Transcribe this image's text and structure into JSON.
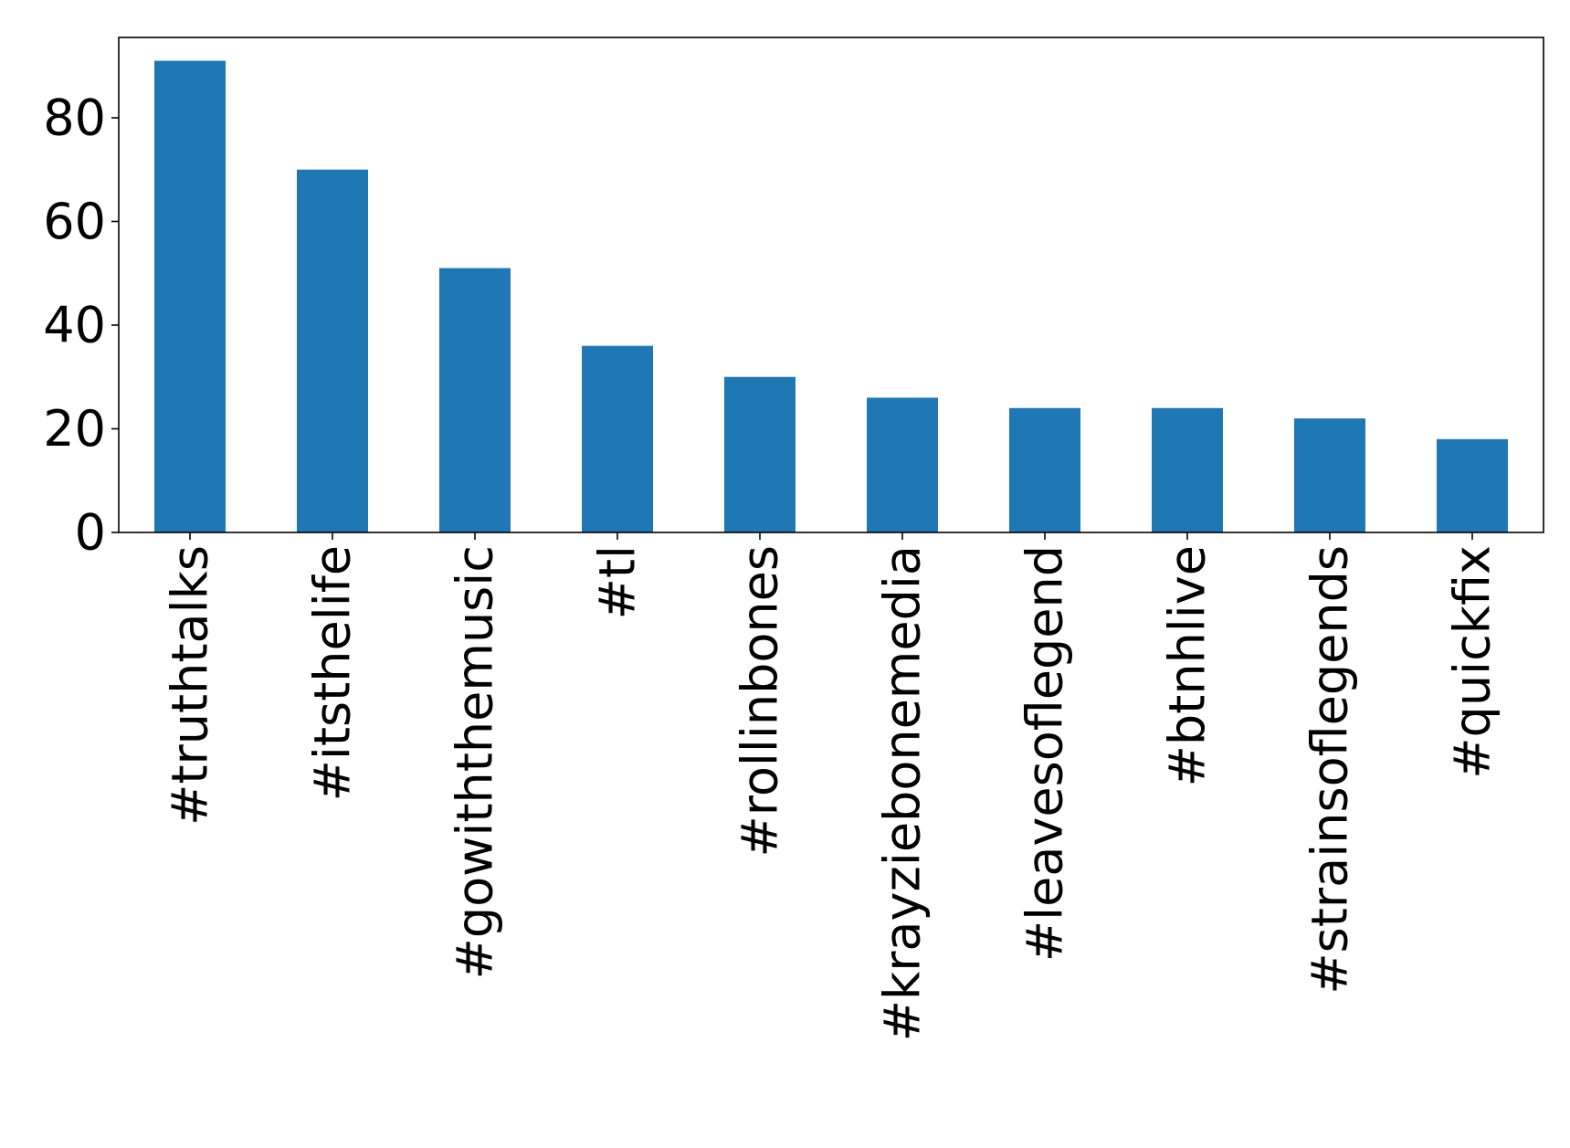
{
  "chart_data": {
    "type": "bar",
    "title": "",
    "xlabel": "",
    "ylabel": "",
    "categories": [
      "#truthtalks",
      "#itsthelife",
      "#gowiththemusic",
      "#tl",
      "#rollinbones",
      "#krayziebonemedia",
      "#leavesoflegend",
      "#btnhlive",
      "#strainsoflegends",
      "#quickfix"
    ],
    "values": [
      91,
      70,
      51,
      36,
      30,
      26,
      24,
      24,
      22,
      18
    ],
    "ylim": [
      0,
      95.5
    ],
    "yticks": [
      0,
      20,
      40,
      60,
      80
    ],
    "grid": false,
    "legend": "none",
    "bar_color": "#1f77b4",
    "axis_color": "#000000"
  }
}
